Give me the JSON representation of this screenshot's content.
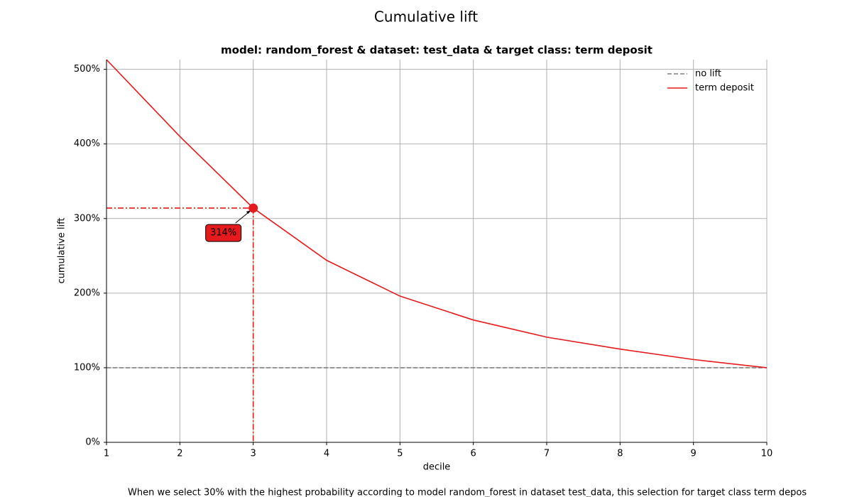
{
  "chart_data": {
    "type": "line",
    "title": "Cumulative lift",
    "subtitle": "model: random_forest & dataset: test_data & target class: term deposit",
    "xlabel": "decile",
    "ylabel": "cumulative lift",
    "x": [
      1,
      2,
      3,
      4,
      5,
      6,
      7,
      8,
      9,
      10
    ],
    "series": [
      {
        "name": "no lift",
        "color": "#808080",
        "linestyle": "dashed",
        "values": [
          100,
          100,
          100,
          100,
          100,
          100,
          100,
          100,
          100,
          100
        ]
      },
      {
        "name": "term deposit",
        "color": "#e41a1c",
        "linestyle": "solid",
        "values": [
          513,
          410,
          314,
          244,
          196,
          164,
          141,
          125,
          111,
          100
        ]
      }
    ],
    "xlim": [
      1,
      10
    ],
    "ylim": [
      0,
      513
    ],
    "xticks": [
      1,
      2,
      3,
      4,
      5,
      6,
      7,
      8,
      9,
      10
    ],
    "yticks": [
      {
        "value": 0,
        "label": "0%"
      },
      {
        "value": 100,
        "label": "100%"
      },
      {
        "value": 200,
        "label": "200%"
      },
      {
        "value": 300,
        "label": "300%"
      },
      {
        "value": 400,
        "label": "400%"
      },
      {
        "value": 500,
        "label": "500%"
      }
    ],
    "grid": true,
    "legend": "upper right",
    "annotation": {
      "x": 3,
      "value": 314,
      "label": "314%",
      "color": "#e41a1c"
    },
    "footnote": "When we select 30% with the highest probability according to model random_forest in dataset test_data, this selection for target class term depos"
  }
}
